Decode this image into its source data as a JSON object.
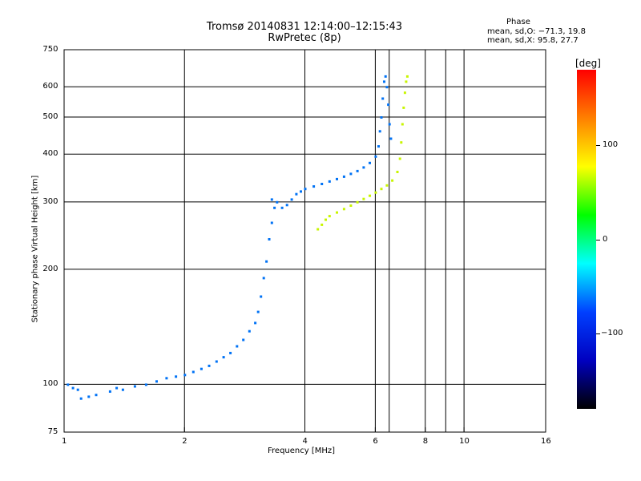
{
  "header": {
    "title": "Tromsø 20140831 12:14:00–12:15:43",
    "subtitle": "RwPretec (8p)",
    "stats_title": "Phase",
    "stats_o": "mean, sd,O: −71.3, 19.8",
    "stats_x": "mean, sd,X:  95.8, 27.7"
  },
  "colorbar": {
    "unit": "[deg]",
    "ticks": [
      {
        "value": 100,
        "label": "100"
      },
      {
        "value": 0,
        "label": "0"
      },
      {
        "value": -100,
        "label": "−100"
      }
    ],
    "range": [
      -180,
      180
    ],
    "stops": [
      "#ff0000",
      "#ff8000",
      "#ffff00",
      "#00ff00",
      "#00ffff",
      "#0040ff",
      "#0000c0",
      "#000000"
    ]
  },
  "chart_data": {
    "type": "scatter",
    "title": "Tromsø 20140831 12:14:00–12:15:43",
    "subtitle": "RwPretec (8p)",
    "xlabel": "Frequency [MHz]",
    "ylabel": "Stationary phase Virtual Height [km]",
    "xscale": "log",
    "yscale": "log",
    "xlim": [
      1,
      16
    ],
    "ylim": [
      75,
      750
    ],
    "grid": true,
    "x_ticks": [
      {
        "value": 1,
        "label": "1"
      },
      {
        "value": 2,
        "label": "2"
      },
      {
        "value": 4,
        "label": "4"
      },
      {
        "value": 6,
        "label": "6"
      },
      {
        "value": 8,
        "label": "8"
      },
      {
        "value": 10,
        "label": "10"
      },
      {
        "value": 16,
        "label": "16"
      }
    ],
    "x_minor": [
      6.5,
      9
    ],
    "y_ticks": [
      {
        "value": 75,
        "label": "75"
      },
      {
        "value": 100,
        "label": "100"
      },
      {
        "value": 200,
        "label": "200"
      },
      {
        "value": 300,
        "label": "300"
      },
      {
        "value": 400,
        "label": "400"
      },
      {
        "value": 500,
        "label": "500"
      },
      {
        "value": 600,
        "label": "600"
      },
      {
        "value": 750,
        "label": "750"
      }
    ],
    "series": [
      {
        "name": "O",
        "color_phase_deg": -71.3,
        "points": [
          [
            1.02,
            100
          ],
          [
            1.05,
            98
          ],
          [
            1.08,
            97
          ],
          [
            1.1,
            92
          ],
          [
            1.15,
            93
          ],
          [
            1.2,
            94
          ],
          [
            1.3,
            96
          ],
          [
            1.35,
            98
          ],
          [
            1.4,
            97
          ],
          [
            1.5,
            99
          ],
          [
            1.6,
            100
          ],
          [
            1.7,
            102
          ],
          [
            1.8,
            104
          ],
          [
            1.9,
            105
          ],
          [
            2.0,
            106
          ],
          [
            2.1,
            108
          ],
          [
            2.2,
            110
          ],
          [
            2.3,
            112
          ],
          [
            2.4,
            115
          ],
          [
            2.5,
            118
          ],
          [
            2.6,
            121
          ],
          [
            2.7,
            126
          ],
          [
            2.8,
            131
          ],
          [
            2.9,
            138
          ],
          [
            3.0,
            145
          ],
          [
            3.05,
            155
          ],
          [
            3.1,
            170
          ],
          [
            3.15,
            190
          ],
          [
            3.2,
            210
          ],
          [
            3.25,
            240
          ],
          [
            3.3,
            265
          ],
          [
            3.35,
            290
          ],
          [
            3.3,
            305
          ],
          [
            3.4,
            300
          ],
          [
            3.5,
            290
          ],
          [
            3.6,
            295
          ],
          [
            3.7,
            305
          ],
          [
            3.8,
            315
          ],
          [
            3.9,
            320
          ],
          [
            4.0,
            325
          ],
          [
            4.2,
            330
          ],
          [
            4.4,
            335
          ],
          [
            4.6,
            340
          ],
          [
            4.8,
            345
          ],
          [
            5.0,
            350
          ],
          [
            5.2,
            356
          ],
          [
            5.4,
            362
          ],
          [
            5.6,
            370
          ],
          [
            5.8,
            380
          ],
          [
            6.0,
            395
          ],
          [
            6.1,
            420
          ],
          [
            6.15,
            460
          ],
          [
            6.2,
            500
          ],
          [
            6.25,
            560
          ],
          [
            6.3,
            620
          ],
          [
            6.35,
            640
          ],
          [
            6.4,
            600
          ],
          [
            6.45,
            540
          ],
          [
            6.5,
            480
          ],
          [
            6.55,
            440
          ]
        ]
      },
      {
        "name": "X",
        "color_phase_deg": 95.8,
        "points": [
          [
            4.3,
            255
          ],
          [
            4.4,
            262
          ],
          [
            4.5,
            270
          ],
          [
            4.6,
            276
          ],
          [
            4.8,
            282
          ],
          [
            5.0,
            288
          ],
          [
            5.2,
            294
          ],
          [
            5.4,
            300
          ],
          [
            5.6,
            306
          ],
          [
            5.8,
            312
          ],
          [
            6.0,
            318
          ],
          [
            6.2,
            325
          ],
          [
            6.4,
            332
          ],
          [
            6.6,
            342
          ],
          [
            6.8,
            360
          ],
          [
            6.9,
            390
          ],
          [
            6.95,
            430
          ],
          [
            7.0,
            480
          ],
          [
            7.05,
            530
          ],
          [
            7.1,
            580
          ],
          [
            7.15,
            620
          ],
          [
            7.2,
            640
          ]
        ]
      }
    ]
  }
}
